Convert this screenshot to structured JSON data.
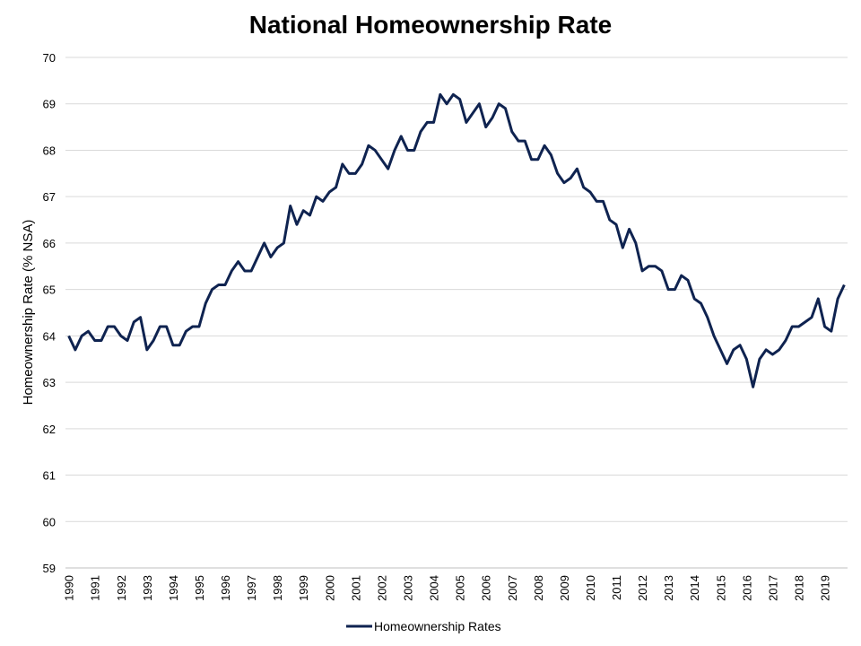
{
  "chart_data": {
    "type": "line",
    "title": "National Homeownership Rate",
    "ylabel": "Homeownership Rate (% NSA)",
    "xlabel": "",
    "ylim": [
      59,
      70
    ],
    "yticks": [
      59,
      60,
      61,
      62,
      63,
      64,
      65,
      66,
      67,
      68,
      69,
      70
    ],
    "xticks": [
      "1990",
      "1991",
      "1992",
      "1993",
      "1994",
      "1995",
      "1996",
      "1997",
      "1998",
      "1999",
      "2000",
      "2001",
      "2002",
      "2003",
      "2004",
      "2005",
      "2006",
      "2007",
      "2008",
      "2009",
      "2010",
      "2011",
      "2012",
      "2013",
      "2014",
      "2015",
      "2016",
      "2017",
      "2018",
      "2019"
    ],
    "grid": "horizontal",
    "legend_position": "bottom",
    "line_color": "#0f2350",
    "series": [
      {
        "name": "Homeownership Rates",
        "frequency": "quarterly",
        "start": "1990 Q1",
        "values": [
          64.0,
          63.7,
          64.0,
          64.1,
          63.9,
          63.9,
          64.2,
          64.2,
          64.0,
          63.9,
          64.3,
          64.4,
          63.7,
          63.9,
          64.2,
          64.2,
          63.8,
          63.8,
          64.1,
          64.2,
          64.2,
          64.7,
          65.0,
          65.1,
          65.1,
          65.4,
          65.6,
          65.4,
          65.4,
          65.7,
          66.0,
          65.7,
          65.9,
          66.0,
          66.8,
          66.4,
          66.7,
          66.6,
          67.0,
          66.9,
          67.1,
          67.2,
          67.7,
          67.5,
          67.5,
          67.7,
          68.1,
          68.0,
          67.8,
          67.6,
          68.0,
          68.3,
          68.0,
          68.0,
          68.4,
          68.6,
          68.6,
          69.2,
          69.0,
          69.2,
          69.1,
          68.6,
          68.8,
          69.0,
          68.5,
          68.7,
          69.0,
          68.9,
          68.4,
          68.2,
          68.2,
          67.8,
          67.8,
          68.1,
          67.9,
          67.5,
          67.3,
          67.4,
          67.6,
          67.2,
          67.1,
          66.9,
          66.9,
          66.5,
          66.4,
          65.9,
          66.3,
          66.0,
          65.4,
          65.5,
          65.5,
          65.4,
          65.0,
          65.0,
          65.3,
          65.2,
          64.8,
          64.7,
          64.4,
          64.0,
          63.7,
          63.4,
          63.7,
          63.8,
          63.5,
          62.9,
          63.5,
          63.7,
          63.6,
          63.7,
          63.9,
          64.2,
          64.2,
          64.3,
          64.4,
          64.8,
          64.2,
          64.1,
          64.8,
          65.1
        ]
      }
    ]
  }
}
